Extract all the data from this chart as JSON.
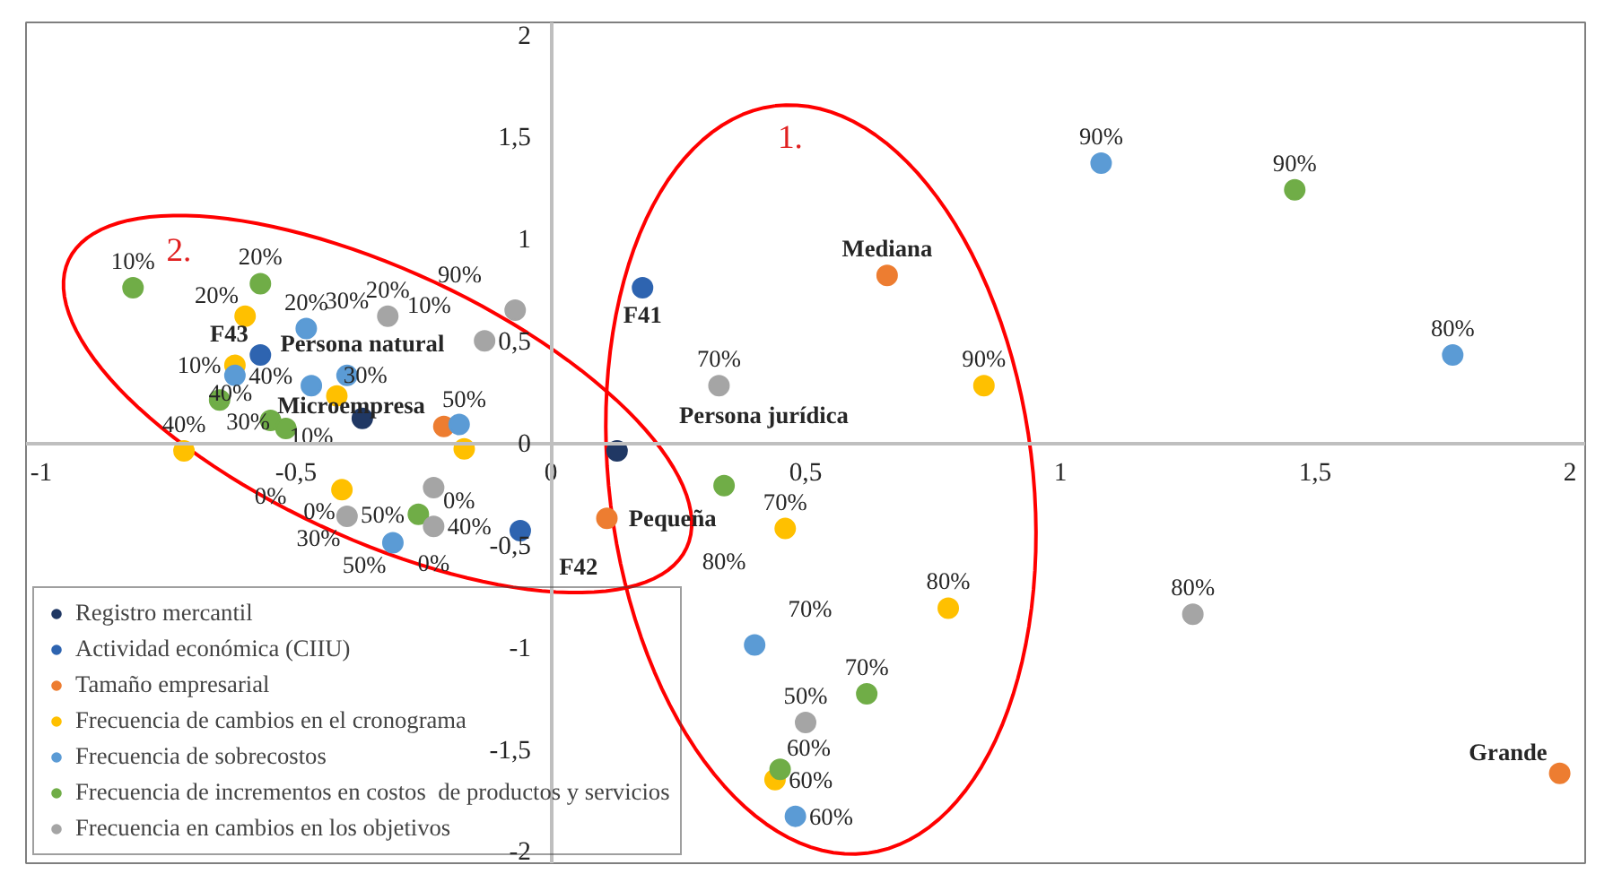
{
  "chart_data": {
    "type": "scatter",
    "xlim": [
      -1.03,
      2.03
    ],
    "ylim": [
      -2.06,
      2.06
    ],
    "xticks": [
      {
        "value": -1,
        "label": "-1"
      },
      {
        "value": -0.5,
        "label": "-0,5"
      },
      {
        "value": 0,
        "label": "0"
      },
      {
        "value": 0.5,
        "label": "0,5"
      },
      {
        "value": 1,
        "label": "1"
      },
      {
        "value": 1.5,
        "label": "1,5"
      },
      {
        "value": 2,
        "label": "2"
      }
    ],
    "yticks": [
      {
        "value": -2,
        "label": "-2"
      },
      {
        "value": -1.5,
        "label": "-1,5"
      },
      {
        "value": -1,
        "label": "-1"
      },
      {
        "value": -0.5,
        "label": "-0,5"
      },
      {
        "value": 0,
        "label": "0"
      },
      {
        "value": 0.5,
        "label": "0,5"
      },
      {
        "value": 1,
        "label": "1"
      },
      {
        "value": 1.5,
        "label": "1,5"
      },
      {
        "value": 2,
        "label": "2"
      }
    ],
    "grid": false,
    "legend": "bottom left",
    "marker": "circle",
    "series": [
      {
        "name": "Registro mercantil",
        "color": "#203864",
        "x": [
          -0.37,
          0.13
        ],
        "values": [
          0.12,
          -0.04
        ]
      },
      {
        "name": "Actividad económica (CIIU)",
        "color": "#2e64b0",
        "x": [
          0.18,
          -0.57,
          -0.06
        ],
        "values": [
          0.76,
          0.43,
          -0.43
        ]
      },
      {
        "name": "Tamaño empresarial",
        "color": "#ed7d31",
        "x": [
          -0.21,
          0.11,
          0.66,
          1.98
        ],
        "values": [
          0.08,
          -0.37,
          0.82,
          -1.62
        ]
      },
      {
        "name": "Frecuencia de cambios en el cronograma",
        "color": "#ffc000",
        "x": [
          -0.72,
          -0.6,
          -0.62,
          -0.42,
          -0.41,
          -0.17,
          0.46,
          0.85,
          0.78,
          0.44
        ],
        "values": [
          -0.04,
          0.62,
          0.38,
          0.23,
          -0.23,
          -0.03,
          -0.42,
          0.28,
          -0.81,
          -1.65
        ]
      },
      {
        "name": "Frecuencia de sobrecostos",
        "color": "#5b9bd5",
        "x": [
          -0.48,
          -0.62,
          -0.4,
          -0.47,
          -0.18,
          -0.31,
          0.4,
          0.48,
          1.08,
          1.77
        ],
        "values": [
          0.56,
          0.33,
          0.33,
          0.28,
          0.09,
          -0.49,
          -0.99,
          -1.83,
          1.37,
          0.43
        ]
      },
      {
        "name": "Frecuencia de incrementos en costos  de productos y servicios",
        "color": "#70ad47",
        "x": [
          -0.82,
          -0.57,
          -0.65,
          -0.55,
          -0.52,
          -0.26,
          0.34,
          0.62,
          0.45,
          1.46
        ],
        "values": [
          0.76,
          0.78,
          0.21,
          0.11,
          0.07,
          -0.35,
          -0.21,
          -1.23,
          -1.6,
          1.24
        ]
      },
      {
        "name": "Frecuencia en cambios en los objetivos",
        "color": "#a5a5a5",
        "x": [
          -0.32,
          -0.13,
          -0.07,
          0.33,
          -0.23,
          -0.4,
          -0.23,
          0.5,
          1.26
        ],
        "values": [
          0.62,
          0.5,
          0.65,
          0.28,
          -0.22,
          -0.36,
          -0.41,
          -1.37,
          -0.84
        ]
      }
    ],
    "annotations": [
      "1.",
      "2.",
      {
        "text": "Persona natural",
        "x": -0.37,
        "y": 0.12
      },
      {
        "text": "Persona jurídica",
        "x": 0.13,
        "y": -0.04
      },
      {
        "text": "F41",
        "x": 0.18,
        "y": 0.76
      },
      {
        "text": "F43",
        "x": -0.57,
        "y": 0.43
      },
      {
        "text": "F42",
        "x": -0.06,
        "y": -0.43
      },
      {
        "text": "Microempresa",
        "x": -0.21,
        "y": 0.08
      },
      {
        "text": "Pequeña",
        "x": 0.11,
        "y": -0.37
      },
      {
        "text": "Mediana",
        "x": 0.66,
        "y": 0.82
      },
      {
        "text": "Grande",
        "x": 1.98,
        "y": -1.62
      },
      {
        "text": "40%",
        "x": -0.72,
        "y": -0.04
      },
      {
        "text": "20%",
        "x": -0.6,
        "y": 0.62
      },
      {
        "text": "10%",
        "x": -0.62,
        "y": 0.38
      },
      {
        "text": "30%",
        "x": -0.42,
        "y": 0.23
      },
      {
        "text": "0%",
        "x": -0.41,
        "y": -0.23
      },
      {
        "text": "50%",
        "x": -0.17,
        "y": -0.03
      },
      {
        "text": "70%",
        "x": 0.46,
        "y": -0.42
      },
      {
        "text": "90%",
        "x": 0.85,
        "y": 0.28
      },
      {
        "text": "80%",
        "x": 0.78,
        "y": -0.81
      },
      {
        "text": "60%",
        "x": 0.44,
        "y": -1.65
      },
      {
        "text": "20%",
        "x": -0.48,
        "y": 0.56
      },
      {
        "text": "40%",
        "x": -0.62,
        "y": 0.33
      },
      {
        "text": "30%",
        "x": -0.4,
        "y": 0.33
      },
      {
        "text": "10%",
        "x": -0.47,
        "y": 0.28
      },
      {
        "text": "0%",
        "x": -0.18,
        "y": 0.09
      },
      {
        "text": "50%",
        "x": -0.31,
        "y": -0.49
      },
      {
        "text": "70%",
        "x": 0.4,
        "y": -0.99
      },
      {
        "text": "60%",
        "x": 0.48,
        "y": -1.83
      },
      {
        "text": "90%",
        "x": 1.08,
        "y": 1.37
      },
      {
        "text": "80%",
        "x": 1.77,
        "y": 0.43
      },
      {
        "text": "10%",
        "x": -0.82,
        "y": 0.76
      },
      {
        "text": "20%",
        "x": -0.57,
        "y": 0.78
      },
      {
        "text": "30%",
        "x": -0.65,
        "y": 0.21
      },
      {
        "text": "0%",
        "x": -0.55,
        "y": 0.11
      },
      {
        "text": "40%",
        "x": -0.52,
        "y": 0.07
      },
      {
        "text": "50%",
        "x": -0.26,
        "y": -0.35
      },
      {
        "text": "80%",
        "x": 0.34,
        "y": -0.21
      },
      {
        "text": "70%",
        "x": 0.62,
        "y": -1.23
      },
      {
        "text": "60%",
        "x": 0.45,
        "y": -1.6
      },
      {
        "text": "90%",
        "x": 1.46,
        "y": 1.24
      },
      {
        "text": "20%",
        "x": -0.32,
        "y": 0.62
      },
      {
        "text": "10%",
        "x": -0.13,
        "y": 0.5
      },
      {
        "text": "90%",
        "x": -0.07,
        "y": 0.65
      },
      {
        "text": "70%",
        "x": 0.33,
        "y": 0.28
      },
      {
        "text": "0%",
        "x": -0.23,
        "y": -0.22
      },
      {
        "text": "30%",
        "x": -0.4,
        "y": -0.36
      },
      {
        "text": "40%",
        "x": -0.23,
        "y": -0.41
      },
      {
        "text": "50%",
        "x": 0.5,
        "y": -1.37
      },
      {
        "text": "80%",
        "x": 1.26,
        "y": -0.84
      }
    ]
  }
}
